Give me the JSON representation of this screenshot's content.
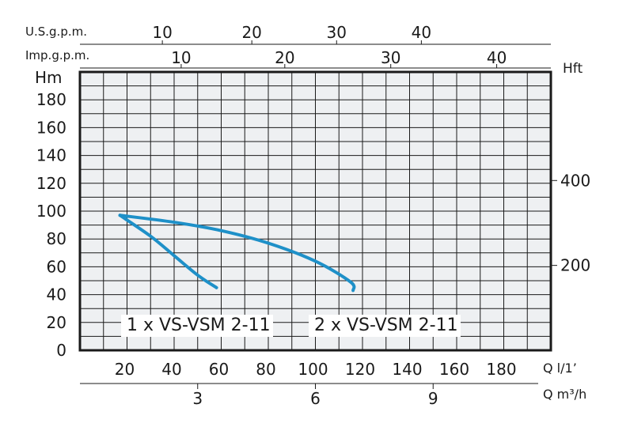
{
  "chart_data": {
    "type": "line",
    "title": "",
    "grid": true,
    "axes": {
      "y_left": {
        "label": "Hm",
        "range": [
          0,
          200
        ],
        "ticks": [
          "0",
          "20",
          "40",
          "60",
          "80",
          "100",
          "120",
          "140",
          "160",
          "180"
        ]
      },
      "y_right": {
        "label": "Hft",
        "ticks": [
          {
            "label": "200",
            "hm": 61
          },
          {
            "label": "400",
            "hm": 122
          }
        ]
      },
      "x_bottom": {
        "label": "Q l/1’",
        "range": [
          0,
          200
        ],
        "ticks": [
          "20",
          "40",
          "60",
          "80",
          "100",
          "120",
          "140",
          "160",
          "180"
        ]
      },
      "x_bottom2": {
        "label": "Q m³/h",
        "ticks": [
          {
            "label": "3",
            "lpm": 50
          },
          {
            "label": "6",
            "lpm": 100
          },
          {
            "label": "9",
            "lpm": 150
          }
        ]
      },
      "x_top_us": {
        "label": "U.S.g.p.m.",
        "ticks": [
          {
            "label": "10",
            "lpm": 35
          },
          {
            "label": "20",
            "lpm": 73
          },
          {
            "label": "30",
            "lpm": 109
          },
          {
            "label": "40",
            "lpm": 145
          }
        ]
      },
      "x_top_imp": {
        "label": "Imp.g.p.m.",
        "ticks": [
          {
            "label": "10",
            "lpm": 43
          },
          {
            "label": "20",
            "lpm": 87
          },
          {
            "label": "30",
            "lpm": 132
          },
          {
            "label": "40",
            "lpm": 177
          }
        ]
      }
    },
    "series": [
      {
        "name": "1 x VS-VSM 2-11",
        "color": "#1e90c8",
        "points": [
          [
            17,
            97
          ],
          [
            30,
            82
          ],
          [
            40,
            68
          ],
          [
            50,
            54
          ],
          [
            58,
            45
          ]
        ]
      },
      {
        "name": "2 x VS-VSM 2-11",
        "color": "#1e90c8",
        "points": [
          [
            17,
            97
          ],
          [
            40,
            92
          ],
          [
            60,
            86
          ],
          [
            80,
            77
          ],
          [
            100,
            64
          ],
          [
            115,
            49
          ],
          [
            116,
            43
          ]
        ]
      }
    ]
  }
}
